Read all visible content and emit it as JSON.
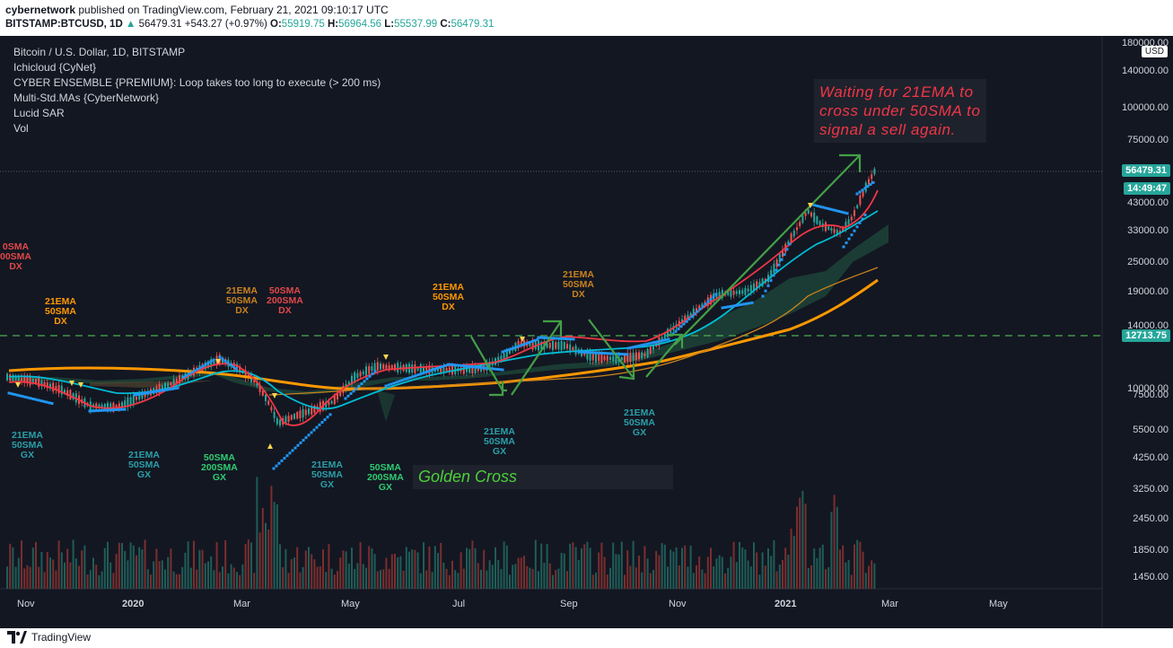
{
  "header": {
    "author": "cybernetwork",
    "published": "published on TradingView.com, February 21, 2021 09:10:17 UTC",
    "symbol": "BITSTAMP:BTCUSD, 1D",
    "last": "56479.31",
    "change": "+543.27 (+0.97%)",
    "o_label": "O:",
    "o": "55919.75",
    "h_label": "H:",
    "h": "56964.56",
    "l_label": "L:",
    "l": "55537.99",
    "c_label": "C:",
    "c": "56479.31"
  },
  "legend": {
    "title": "Bitcoin / U.S. Dollar, 1D, BITSTAMP",
    "indicators": [
      "Ichicloud {CyNet}",
      "CYBER ENSEMBLE {PREMIUM}: Loop takes too long to execute (> 200 ms)",
      "Multi-Std.MAs {CyberNetwork}",
      "Lucid SAR",
      "Vol"
    ]
  },
  "price_axis": {
    "currency": "USD",
    "ticks": [
      "180000.00",
      "140000.00",
      "100000.00",
      "75000.00",
      "56479.31",
      "43000.00",
      "33000.00",
      "25000.00",
      "19000.00",
      "14000.00",
      "12713.75",
      "10000.00",
      "7500.00",
      "5500.00",
      "4250.00",
      "3250.00",
      "2450.00",
      "1850.00",
      "1450.00"
    ],
    "last_price": "56479.31",
    "countdown": "14:49:47",
    "hline_price": "12713.75"
  },
  "time_axis": {
    "labels": [
      "Nov",
      "2020",
      "Mar",
      "May",
      "Jul",
      "Sep",
      "Nov",
      "2021",
      "Mar",
      "May"
    ]
  },
  "annotations": {
    "callout": [
      "Waiting for 21EMA to",
      "cross under 50SMA to",
      "signal a sell again."
    ],
    "golden_cross": "Golden Cross",
    "a1": [
      "0SMA",
      "00SMA",
      "DX"
    ],
    "a2": [
      "21EMA",
      "50SMA",
      "DX"
    ],
    "a3": [
      "21EMA",
      "50SMA",
      "DX"
    ],
    "a4": [
      "50SMA",
      "200SMA",
      "DX"
    ],
    "a5": [
      "21EMA",
      "50SMA",
      "DX"
    ],
    "a6": [
      "21EMA",
      "50SMA",
      "DX"
    ],
    "b1": [
      "21EMA",
      "50SMA",
      "GX"
    ],
    "b2": [
      "21EMA",
      "50SMA",
      "GX"
    ],
    "b3": [
      "50SMA",
      "200SMA",
      "GX"
    ],
    "b4": [
      "21EMA",
      "50SMA",
      "GX"
    ],
    "b5": [
      "50SMA",
      "200SMA",
      "GX"
    ],
    "b6": [
      "21EMA",
      "50SMA",
      "GX"
    ],
    "b7": [
      "21EMA",
      "50SMA",
      "GX"
    ]
  },
  "footer": {
    "brand": "TradingView"
  },
  "colors": {
    "background": "#131722",
    "up": "#26a69a",
    "down": "#ef5350",
    "sar": "#2196f3",
    "ema21": "#f23645",
    "sma50": "#00bcd4",
    "sma200": "#ff9800",
    "hline": "#4caf50"
  }
}
